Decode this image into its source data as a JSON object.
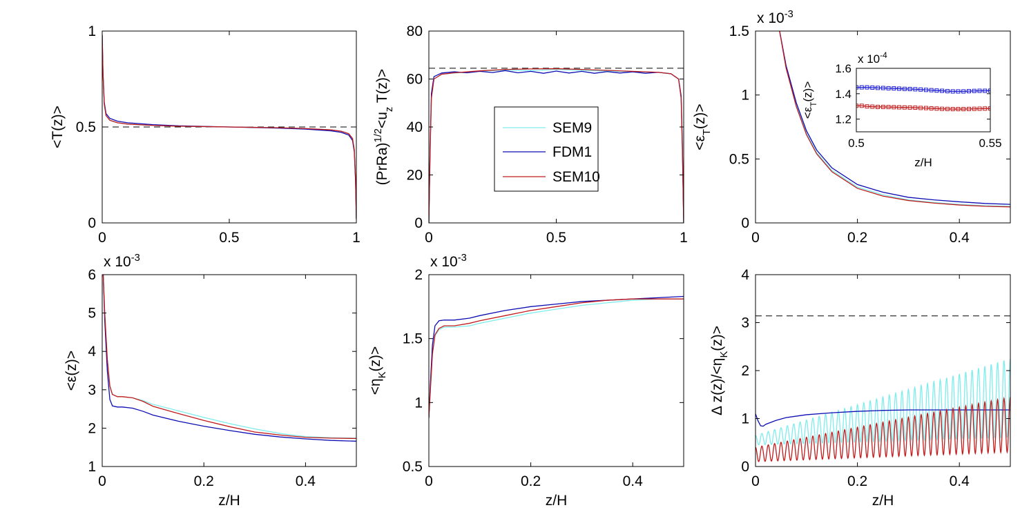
{
  "figure": {
    "legend": {
      "entries": [
        "SEM9",
        "FDM1",
        "SEM10"
      ],
      "placement": "center"
    }
  },
  "chart_data": [
    {
      "type": "line",
      "id": "p1",
      "xlabel": "",
      "ylabel": "<T(z)>",
      "xlim": [
        0,
        1
      ],
      "ylim": [
        0,
        1
      ],
      "xticks": [
        0,
        0.5,
        1
      ],
      "yticks": [
        0,
        0.5,
        1
      ],
      "xtick_labels": [
        "0",
        "0.5",
        "1"
      ],
      "ytick_labels": [
        "0",
        "0.5",
        "1"
      ],
      "multiplier": "",
      "ref_line": 0.5,
      "series": [
        {
          "name": "SEM9",
          "color": "#7fecec",
          "x": [
            0,
            0.003,
            0.008,
            0.015,
            0.03,
            0.06,
            0.1,
            0.2,
            0.3,
            0.4,
            0.5,
            0.6,
            0.7,
            0.8,
            0.9,
            0.94,
            0.97,
            0.985,
            0.992,
            0.997,
            1
          ],
          "y": [
            0.98,
            0.78,
            0.62,
            0.56,
            0.535,
            0.522,
            0.515,
            0.508,
            0.504,
            0.502,
            0.5,
            0.498,
            0.496,
            0.492,
            0.485,
            0.478,
            0.465,
            0.44,
            0.38,
            0.22,
            0.02
          ]
        },
        {
          "name": "FDM1",
          "color": "#0c0cb4",
          "x": [
            0,
            0.003,
            0.008,
            0.015,
            0.03,
            0.06,
            0.1,
            0.2,
            0.3,
            0.4,
            0.5,
            0.6,
            0.7,
            0.8,
            0.9,
            0.94,
            0.97,
            0.985,
            0.992,
            0.997,
            1
          ],
          "y": [
            0.98,
            0.79,
            0.63,
            0.57,
            0.545,
            0.53,
            0.522,
            0.512,
            0.506,
            0.503,
            0.5,
            0.497,
            0.494,
            0.489,
            0.48,
            0.472,
            0.458,
            0.43,
            0.37,
            0.21,
            0.02
          ]
        },
        {
          "name": "SEM10",
          "color": "#c21a1a",
          "x": [
            0,
            0.003,
            0.008,
            0.015,
            0.03,
            0.06,
            0.1,
            0.2,
            0.3,
            0.4,
            0.5,
            0.6,
            0.7,
            0.8,
            0.9,
            0.94,
            0.97,
            0.985,
            0.992,
            0.997,
            1
          ],
          "y": [
            0.98,
            0.78,
            0.62,
            0.56,
            0.535,
            0.522,
            0.515,
            0.508,
            0.504,
            0.502,
            0.5,
            0.498,
            0.496,
            0.492,
            0.485,
            0.478,
            0.465,
            0.44,
            0.38,
            0.22,
            0.02
          ]
        }
      ]
    },
    {
      "type": "line",
      "id": "p2",
      "xlabel": "",
      "ylabel": "(PrRa)^{1/2}<u_z T(z)>",
      "xlim": [
        0,
        1
      ],
      "ylim": [
        0,
        80
      ],
      "xticks": [
        0,
        0.5,
        1
      ],
      "yticks": [
        0,
        20,
        40,
        60,
        80
      ],
      "xtick_labels": [
        "0",
        "0.5",
        "1"
      ],
      "ytick_labels": [
        "0",
        "20",
        "40",
        "60",
        "80"
      ],
      "multiplier": "",
      "ref_line": 64.5,
      "series": [
        {
          "name": "SEM9",
          "color": "#7fecec",
          "x": [
            0,
            0.005,
            0.01,
            0.02,
            0.05,
            0.1,
            0.2,
            0.3,
            0.4,
            0.5,
            0.6,
            0.7,
            0.8,
            0.9,
            0.95,
            0.98,
            0.99,
            0.995,
            1
          ],
          "y": [
            0,
            30,
            52,
            60,
            62,
            62.5,
            63.2,
            63.8,
            63.5,
            64,
            63.6,
            63.3,
            63.1,
            62.8,
            62.2,
            60,
            52,
            30,
            0
          ]
        },
        {
          "name": "FDM1",
          "color": "#0c0cb4",
          "x": [
            0,
            0.005,
            0.01,
            0.02,
            0.05,
            0.1,
            0.15,
            0.2,
            0.25,
            0.3,
            0.35,
            0.4,
            0.45,
            0.5,
            0.55,
            0.6,
            0.65,
            0.7,
            0.75,
            0.8,
            0.85,
            0.9,
            0.95,
            0.98,
            0.99,
            0.995,
            1
          ],
          "y": [
            0,
            32,
            54,
            61,
            62.5,
            63,
            62.6,
            63.2,
            62.7,
            63.5,
            62.6,
            63.2,
            62.4,
            63.3,
            62.5,
            63.2,
            62.4,
            63.1,
            62.5,
            63,
            62.4,
            62.8,
            62.2,
            60,
            53,
            32,
            0
          ]
        },
        {
          "name": "SEM10",
          "color": "#c21a1a",
          "x": [
            0,
            0.005,
            0.01,
            0.02,
            0.05,
            0.1,
            0.2,
            0.3,
            0.4,
            0.5,
            0.6,
            0.7,
            0.8,
            0.9,
            0.95,
            0.98,
            0.99,
            0.995,
            1
          ],
          "y": [
            0,
            30,
            52,
            60,
            62,
            62.6,
            63.4,
            64,
            64.2,
            64.3,
            64,
            63.6,
            63.2,
            62.8,
            62.2,
            60,
            52,
            30,
            0
          ]
        }
      ]
    },
    {
      "type": "line",
      "id": "p3",
      "xlabel": "",
      "ylabel": "<ε_T(z)>",
      "xlim": [
        0,
        0.5
      ],
      "ylim": [
        0,
        1.5
      ],
      "xticks": [
        0,
        0.2,
        0.4
      ],
      "yticks": [
        0,
        0.5,
        1,
        1.5
      ],
      "xtick_labels": [
        "0",
        "0.2",
        "0.4"
      ],
      "ytick_labels": [
        "0",
        "0.5",
        "1",
        "1.5"
      ],
      "multiplier": "x 10^-3",
      "ref_line": null,
      "series": [
        {
          "name": "SEM9",
          "color": "#7fecec",
          "x": [
            0.045,
            0.06,
            0.08,
            0.1,
            0.12,
            0.15,
            0.2,
            0.25,
            0.3,
            0.35,
            0.4,
            0.45,
            0.5
          ],
          "y": [
            1.55,
            1.22,
            0.92,
            0.7,
            0.55,
            0.41,
            0.28,
            0.22,
            0.18,
            0.16,
            0.145,
            0.135,
            0.13
          ]
        },
        {
          "name": "FDM1",
          "color": "#0c0cb4",
          "x": [
            0.045,
            0.06,
            0.08,
            0.1,
            0.12,
            0.15,
            0.2,
            0.25,
            0.3,
            0.35,
            0.4,
            0.45,
            0.5
          ],
          "y": [
            1.55,
            1.23,
            0.94,
            0.72,
            0.57,
            0.43,
            0.3,
            0.24,
            0.2,
            0.18,
            0.165,
            0.152,
            0.145
          ]
        },
        {
          "name": "SEM10",
          "color": "#c21a1a",
          "x": [
            0.045,
            0.06,
            0.08,
            0.1,
            0.12,
            0.15,
            0.2,
            0.25,
            0.3,
            0.35,
            0.4,
            0.45,
            0.5
          ],
          "y": [
            1.55,
            1.21,
            0.91,
            0.69,
            0.54,
            0.4,
            0.27,
            0.21,
            0.175,
            0.155,
            0.14,
            0.13,
            0.125
          ]
        }
      ]
    },
    {
      "type": "line",
      "id": "p3inset",
      "xlabel": "z/H",
      "ylabel": "<ε_T(z)>",
      "xlim": [
        0.5,
        0.55
      ],
      "ylim": [
        1.1,
        1.6
      ],
      "xticks": [
        0.5,
        0.55
      ],
      "yticks": [
        1.2,
        1.4,
        1.6
      ],
      "xtick_labels": [
        "0.5",
        "0.55"
      ],
      "ytick_labels": [
        "1.2",
        "1.4",
        "1.6"
      ],
      "multiplier": "x 10^-4",
      "ref_line": null,
      "series": [
        {
          "name": "FDM1",
          "color": "#1a1ad8",
          "marker": "square",
          "x": [
            0.5,
            0.502,
            0.504,
            0.506,
            0.508,
            0.51,
            0.512,
            0.514,
            0.516,
            0.518,
            0.52,
            0.522,
            0.524,
            0.526,
            0.528,
            0.53,
            0.532,
            0.534,
            0.536,
            0.538,
            0.54,
            0.542,
            0.544,
            0.546,
            0.548,
            0.55
          ],
          "y": [
            1.45,
            1.45,
            1.45,
            1.448,
            1.446,
            1.445,
            1.443,
            1.442,
            1.44,
            1.438,
            1.437,
            1.435,
            1.433,
            1.43,
            1.428,
            1.425,
            1.423,
            1.42,
            1.418,
            1.418,
            1.418,
            1.42,
            1.422,
            1.423,
            1.423,
            1.424
          ]
        },
        {
          "name": "SEM10",
          "color": "#c21a1a",
          "marker": "square",
          "x": [
            0.5,
            0.502,
            0.504,
            0.506,
            0.508,
            0.51,
            0.512,
            0.514,
            0.516,
            0.518,
            0.52,
            0.522,
            0.524,
            0.526,
            0.528,
            0.53,
            0.532,
            0.534,
            0.536,
            0.538,
            0.54,
            0.542,
            0.544,
            0.546,
            0.548,
            0.55
          ],
          "y": [
            1.305,
            1.305,
            1.3,
            1.298,
            1.296,
            1.296,
            1.295,
            1.294,
            1.293,
            1.292,
            1.291,
            1.29,
            1.288,
            1.287,
            1.285,
            1.283,
            1.281,
            1.28,
            1.279,
            1.279,
            1.279,
            1.28,
            1.281,
            1.282,
            1.283,
            1.284
          ]
        }
      ]
    },
    {
      "type": "line",
      "id": "p4",
      "xlabel": "z/H",
      "ylabel": "<ε(z)>",
      "xlim": [
        0,
        0.5
      ],
      "ylim": [
        1,
        6
      ],
      "xticks": [
        0,
        0.2,
        0.4
      ],
      "yticks": [
        1,
        2,
        3,
        4,
        5,
        6
      ],
      "xtick_labels": [
        "0",
        "0.2",
        "0.4"
      ],
      "ytick_labels": [
        "1",
        "2",
        "3",
        "4",
        "5",
        "6"
      ],
      "multiplier": "x 10^-3",
      "ref_line": null,
      "series": [
        {
          "name": "SEM9",
          "color": "#7fecec",
          "x": [
            0.002,
            0.005,
            0.01,
            0.015,
            0.02,
            0.03,
            0.04,
            0.06,
            0.08,
            0.1,
            0.15,
            0.2,
            0.25,
            0.3,
            0.35,
            0.4,
            0.45,
            0.5
          ],
          "y": [
            6,
            5,
            3.8,
            3.1,
            2.88,
            2.82,
            2.82,
            2.79,
            2.72,
            2.62,
            2.45,
            2.28,
            2.12,
            1.98,
            1.86,
            1.78,
            1.75,
            1.74
          ]
        },
        {
          "name": "FDM1",
          "color": "#0c0cb4",
          "x": [
            0.002,
            0.005,
            0.01,
            0.015,
            0.02,
            0.03,
            0.04,
            0.06,
            0.08,
            0.1,
            0.15,
            0.2,
            0.25,
            0.3,
            0.35,
            0.4,
            0.45,
            0.5
          ],
          "y": [
            6,
            4.8,
            3.5,
            2.75,
            2.58,
            2.55,
            2.55,
            2.52,
            2.44,
            2.34,
            2.18,
            2.05,
            1.94,
            1.84,
            1.77,
            1.72,
            1.68,
            1.66
          ]
        },
        {
          "name": "SEM10",
          "color": "#c21a1a",
          "x": [
            0.002,
            0.005,
            0.01,
            0.015,
            0.02,
            0.03,
            0.04,
            0.06,
            0.08,
            0.1,
            0.15,
            0.2,
            0.25,
            0.3,
            0.35,
            0.4,
            0.45,
            0.5
          ],
          "y": [
            6,
            5,
            3.8,
            3.1,
            2.88,
            2.82,
            2.82,
            2.79,
            2.7,
            2.57,
            2.38,
            2.2,
            2.04,
            1.9,
            1.82,
            1.76,
            1.74,
            1.73
          ]
        }
      ]
    },
    {
      "type": "line",
      "id": "p5",
      "xlabel": "z/H",
      "ylabel": "<η_K(z)>",
      "xlim": [
        0,
        0.5
      ],
      "ylim": [
        0.5,
        2
      ],
      "xticks": [
        0,
        0.2,
        0.4
      ],
      "yticks": [
        0.5,
        1,
        1.5,
        2
      ],
      "xtick_labels": [
        "0",
        "0.2",
        "0.4"
      ],
      "ytick_labels": [
        "0.5",
        "1",
        "1.5",
        "2"
      ],
      "multiplier": "x 10^-3",
      "ref_line": null,
      "series": [
        {
          "name": "SEM9",
          "color": "#7fecec",
          "x": [
            0,
            0.003,
            0.007,
            0.012,
            0.02,
            0.03,
            0.05,
            0.08,
            0.1,
            0.15,
            0.2,
            0.25,
            0.3,
            0.35,
            0.4,
            0.45,
            0.5
          ],
          "y": [
            0.88,
            1.1,
            1.38,
            1.52,
            1.57,
            1.59,
            1.59,
            1.6,
            1.62,
            1.66,
            1.7,
            1.73,
            1.76,
            1.78,
            1.8,
            1.81,
            1.81
          ]
        },
        {
          "name": "FDM1",
          "color": "#0c0cb4",
          "x": [
            0,
            0.003,
            0.007,
            0.012,
            0.02,
            0.03,
            0.05,
            0.08,
            0.1,
            0.15,
            0.2,
            0.25,
            0.3,
            0.35,
            0.4,
            0.45,
            0.5
          ],
          "y": [
            0.88,
            1.15,
            1.45,
            1.6,
            1.64,
            1.645,
            1.645,
            1.66,
            1.68,
            1.72,
            1.75,
            1.77,
            1.79,
            1.8,
            1.81,
            1.82,
            1.83
          ]
        },
        {
          "name": "SEM10",
          "color": "#c21a1a",
          "x": [
            0,
            0.003,
            0.007,
            0.012,
            0.02,
            0.03,
            0.05,
            0.08,
            0.1,
            0.15,
            0.2,
            0.25,
            0.3,
            0.35,
            0.4,
            0.45,
            0.5
          ],
          "y": [
            0.88,
            1.1,
            1.38,
            1.53,
            1.58,
            1.6,
            1.6,
            1.62,
            1.64,
            1.68,
            1.72,
            1.75,
            1.78,
            1.8,
            1.81,
            1.81,
            1.81
          ]
        }
      ]
    },
    {
      "type": "line",
      "id": "p6",
      "xlabel": "z/H",
      "ylabel": "Δ z(z)/<η_K(z)>",
      "xlim": [
        0,
        0.5
      ],
      "ylim": [
        0,
        4
      ],
      "xticks": [
        0,
        0.2,
        0.4
      ],
      "yticks": [
        0,
        1,
        2,
        3,
        4
      ],
      "xtick_labels": [
        "0",
        "0.2",
        "0.4"
      ],
      "ytick_labels": [
        "0",
        "1",
        "2",
        "3",
        "4"
      ],
      "multiplier": "",
      "ref_line": 3.14,
      "oscillating": {
        "SEM9": {
          "elements": 40,
          "min_start": 0.45,
          "min_end": 0.6,
          "max_start": 0.65,
          "max_end": 2.25
        },
        "SEM10": {
          "elements": 40,
          "min_start": 0.1,
          "min_end": 0.3,
          "max_start": 0.4,
          "max_end": 1.45
        }
      },
      "series": [
        {
          "name": "SEM9",
          "color": "#7fecec",
          "x": [
            0,
            0.5
          ],
          "y": [
            0.45,
            2.25
          ]
        },
        {
          "name": "FDM1",
          "color": "#0c0cb4",
          "x": [
            0,
            0.005,
            0.01,
            0.015,
            0.02,
            0.04,
            0.06,
            0.1,
            0.15,
            0.2,
            0.25,
            0.3,
            0.35,
            0.4,
            0.45,
            0.5
          ],
          "y": [
            1.1,
            0.95,
            0.85,
            0.84,
            0.88,
            0.96,
            1.02,
            1.08,
            1.12,
            1.15,
            1.17,
            1.18,
            1.18,
            1.18,
            1.18,
            1.18
          ]
        },
        {
          "name": "SEM10",
          "color": "#c21a1a",
          "x": [
            0,
            0.5
          ],
          "y": [
            0.1,
            1.45
          ]
        }
      ]
    }
  ]
}
